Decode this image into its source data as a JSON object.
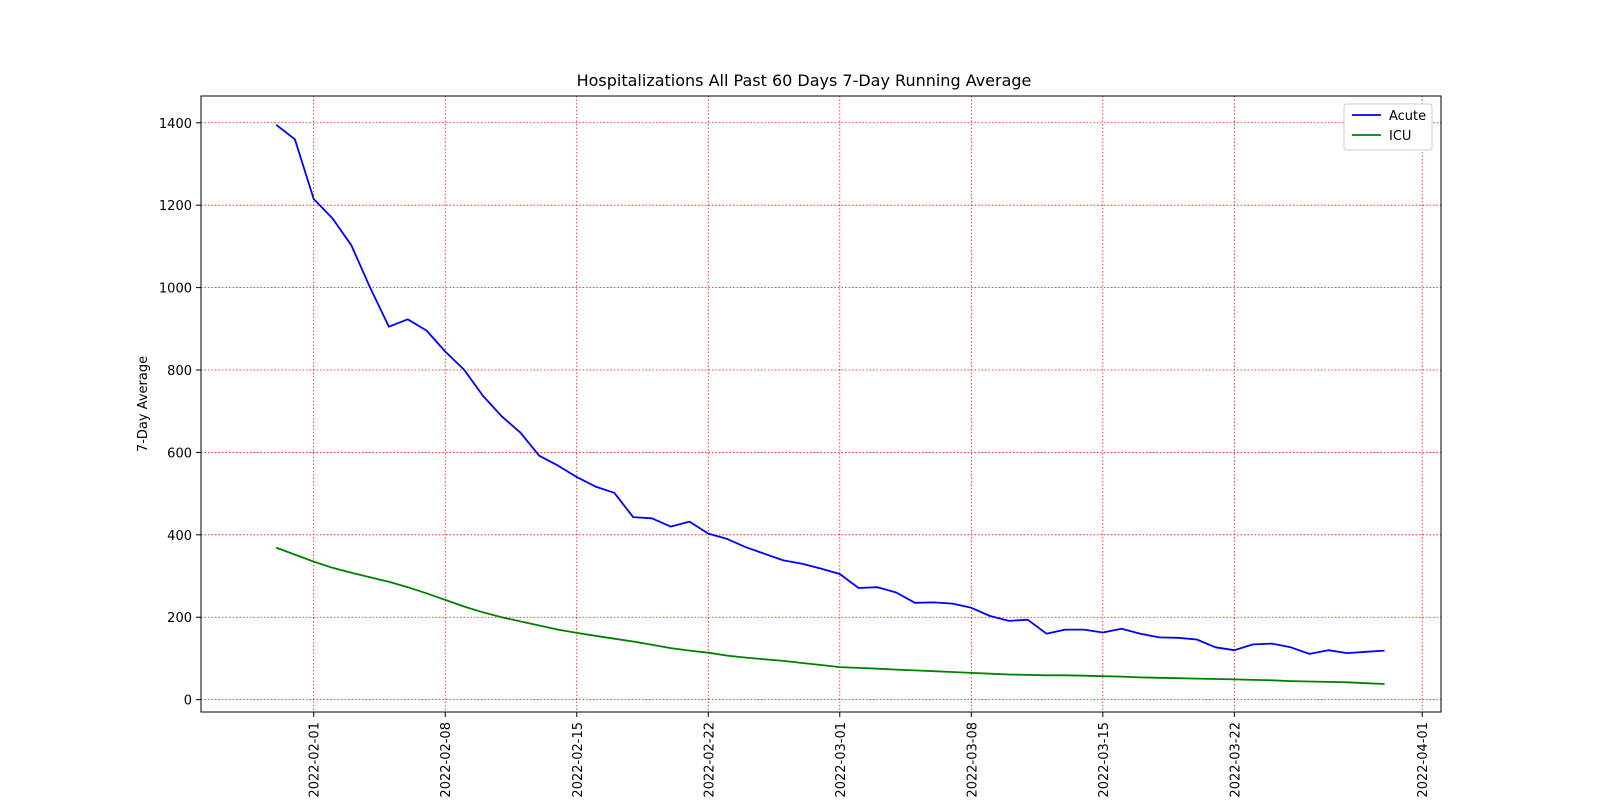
{
  "chart_data": {
    "type": "line",
    "title": "Hospitalizations All Past 60 Days 7-Day Running Average",
    "xlabel": "",
    "ylabel": "7-Day Average",
    "x": [
      "2022-01-30",
      "2022-01-31",
      "2022-02-01",
      "2022-02-02",
      "2022-02-03",
      "2022-02-04",
      "2022-02-05",
      "2022-02-06",
      "2022-02-07",
      "2022-02-08",
      "2022-02-09",
      "2022-02-10",
      "2022-02-11",
      "2022-02-12",
      "2022-02-13",
      "2022-02-14",
      "2022-02-15",
      "2022-02-16",
      "2022-02-17",
      "2022-02-18",
      "2022-02-19",
      "2022-02-20",
      "2022-02-21",
      "2022-02-22",
      "2022-02-23",
      "2022-02-24",
      "2022-02-25",
      "2022-02-26",
      "2022-02-27",
      "2022-02-28",
      "2022-03-01",
      "2022-03-02",
      "2022-03-03",
      "2022-03-04",
      "2022-03-05",
      "2022-03-06",
      "2022-03-07",
      "2022-03-08",
      "2022-03-09",
      "2022-03-10",
      "2022-03-11",
      "2022-03-12",
      "2022-03-13",
      "2022-03-14",
      "2022-03-15",
      "2022-03-16",
      "2022-03-17",
      "2022-03-18",
      "2022-03-19",
      "2022-03-20",
      "2022-03-21",
      "2022-03-22",
      "2022-03-23",
      "2022-03-24",
      "2022-03-25",
      "2022-03-26",
      "2022-03-27",
      "2022-03-28",
      "2022-03-29",
      "2022-03-30",
      "2022-03-31"
    ],
    "series": [
      {
        "name": "Acute",
        "color": "#0000ff",
        "values": [
          1395,
          1360,
          1215,
          1168,
          1103,
          1000,
          905,
          923,
          896,
          845,
          801,
          738,
          688,
          648,
          592,
          568,
          540,
          517,
          502,
          443,
          440,
          420,
          432,
          403,
          390,
          370,
          354,
          338,
          330,
          318,
          305,
          271,
          273,
          260,
          235,
          236,
          233,
          223,
          203,
          191,
          194,
          160,
          170,
          170,
          163,
          172,
          160,
          151,
          150,
          146,
          127,
          120,
          134,
          136,
          127,
          111,
          120,
          113,
          116,
          119,
          120
        ],
        "draw_points": 60
      },
      {
        "name": "ICU",
        "color": "#008000",
        "values": [
          369,
          352,
          335,
          320,
          308,
          297,
          286,
          273,
          258,
          242,
          226,
          212,
          200,
          190,
          180,
          170,
          162,
          155,
          148,
          141,
          133,
          125,
          119,
          114,
          107,
          102,
          98,
          94,
          89,
          84,
          79,
          77,
          75,
          73,
          71,
          69,
          67,
          65,
          63,
          61,
          60,
          59,
          59,
          58,
          57,
          56,
          54,
          53,
          52,
          51,
          50,
          49,
          48,
          47,
          45,
          44,
          43,
          42,
          40,
          38,
          38
        ],
        "draw_points": 60
      }
    ],
    "xticks": [
      "2022-02-01",
      "2022-02-08",
      "2022-02-15",
      "2022-02-22",
      "2022-03-01",
      "2022-03-08",
      "2022-03-15",
      "2022-03-22",
      "2022-04-01"
    ],
    "yticks": [
      0,
      200,
      400,
      600,
      800,
      1000,
      1200,
      1400
    ],
    "xlim": [
      "2022-01-26",
      "2022-04-02"
    ],
    "ylim": [
      -30,
      1465
    ],
    "grid": true,
    "grid_color": "#ff0000",
    "legend_position": "top-right"
  }
}
